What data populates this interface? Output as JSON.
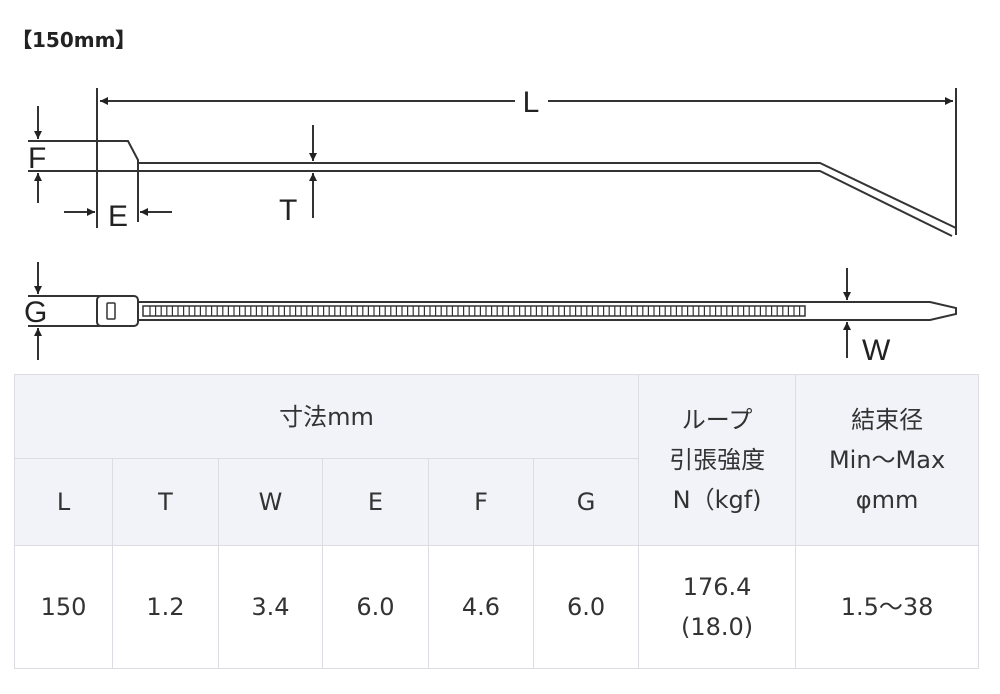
{
  "title": "【150mm】",
  "diagram": {
    "labels": {
      "L": "L",
      "F": "F",
      "E": "E",
      "T": "T",
      "G": "G",
      "W": "W"
    }
  },
  "table": {
    "group_header": "寸法mm",
    "loop_header": [
      "ループ",
      "引張強度",
      "N（kgf)"
    ],
    "diameter_header": [
      "結束径",
      "Min～Max",
      "φmm"
    ],
    "columns": [
      "L",
      "T",
      "W",
      "E",
      "F",
      "G"
    ],
    "row": {
      "L": "150",
      "T": "1.2",
      "W": "3.4",
      "E": "6.0",
      "F": "4.6",
      "G": "6.0",
      "loop": [
        "176.4",
        "(18.0)"
      ],
      "diameter": "1.5～38"
    }
  }
}
